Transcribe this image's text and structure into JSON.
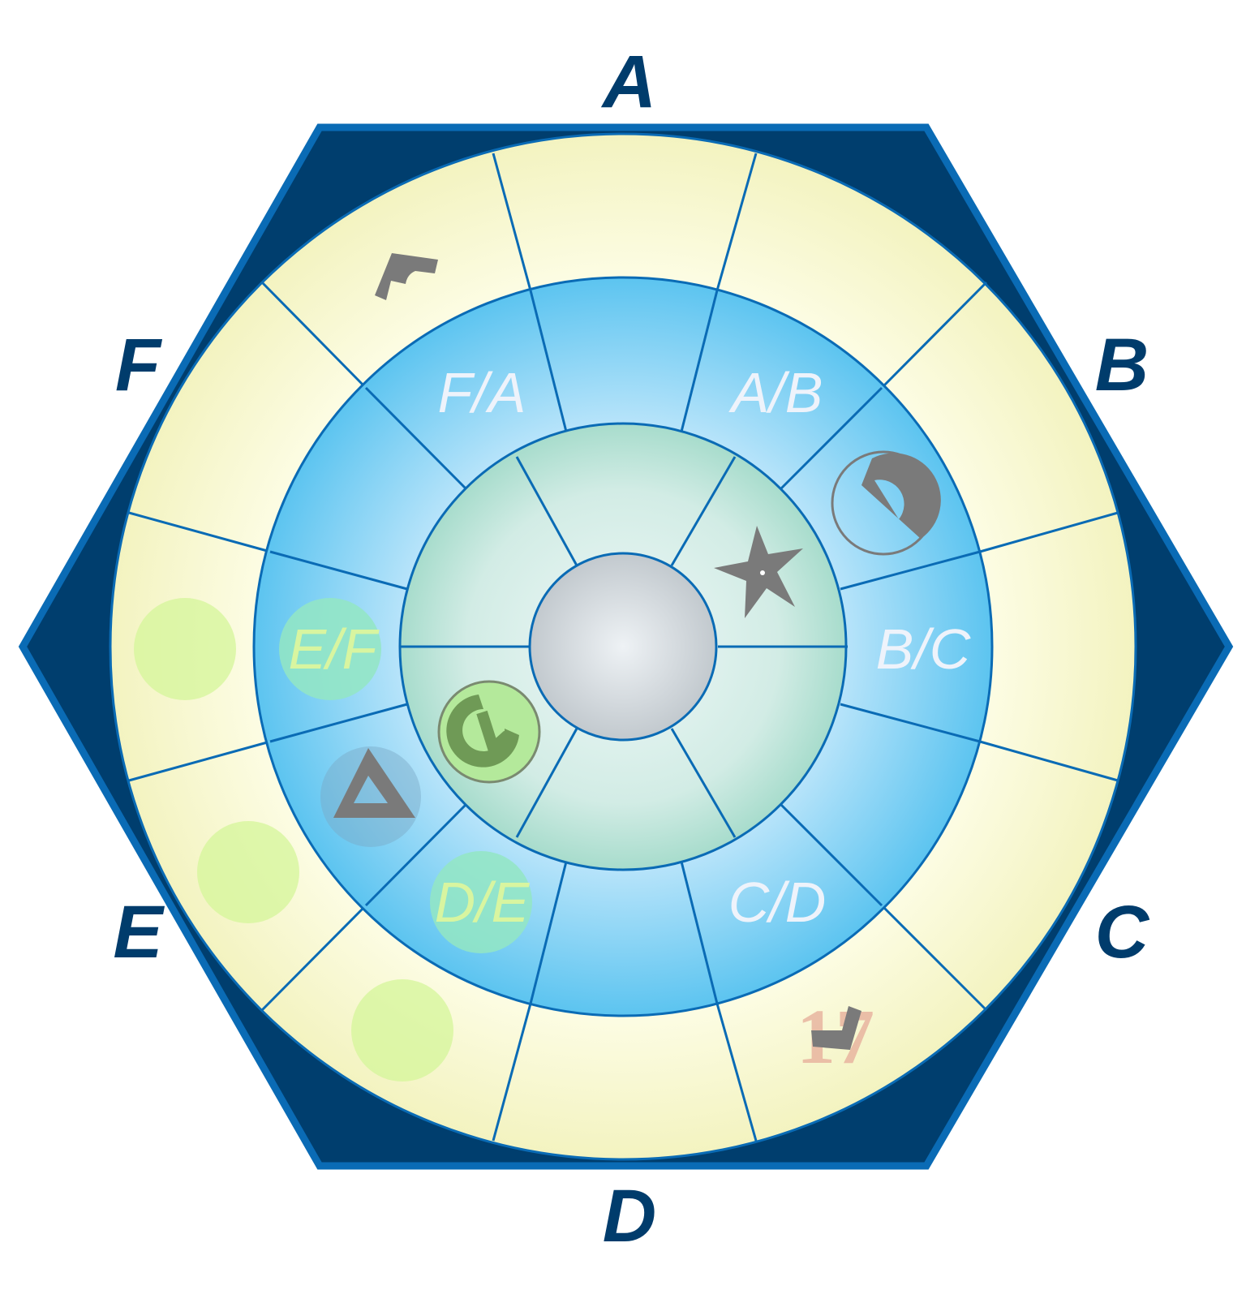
{
  "board": {
    "side_labels": {
      "A": "A",
      "B": "B",
      "C": "C",
      "D": "D",
      "E": "E",
      "F": "F"
    },
    "zone_labels": {
      "fa": "F/A",
      "ab": "A/B",
      "bc": "B/C",
      "cd": "C/D",
      "de": "D/E",
      "ef": "E/F"
    },
    "corner_badge_text": "17",
    "rings": [
      "outer",
      "middle",
      "inner",
      "center"
    ],
    "markers": [
      {
        "name": "outer-ring-marker-icon",
        "zone": "F/A",
        "ring": "outer"
      },
      {
        "name": "half-circle-marker-icon",
        "zone": "A/B",
        "ring": "middle"
      },
      {
        "name": "star-marker-icon",
        "zone": "A/B",
        "ring": "inner"
      },
      {
        "name": "hook-marker-icon",
        "zone": "D/E",
        "ring": "inner"
      },
      {
        "name": "triangle-marker-icon",
        "zone": "D/E",
        "ring": "middle"
      },
      {
        "name": "check-marker-icon",
        "zone": "C/D",
        "ring": "outer"
      }
    ],
    "ghost_tokens": [
      {
        "name": "ghost-token-ef-outer",
        "zone": "E/F",
        "ring": "outer"
      },
      {
        "name": "ghost-token-ef-middle",
        "zone": "E/F",
        "ring": "middle"
      },
      {
        "name": "ghost-token-de-outer-1",
        "zone": "D/E",
        "ring": "outer"
      },
      {
        "name": "ghost-token-de-outer-2",
        "zone": "D/E",
        "ring": "outer"
      },
      {
        "name": "ghost-token-de-middle",
        "zone": "D/E",
        "ring": "middle"
      }
    ],
    "colors": {
      "hex_fill": "#003e6e",
      "hex_border": "#0a6bb5",
      "outer_ring": "#fbfbd8",
      "middle_ring": "#a9dcf5",
      "inner_ring": "#cdeee6",
      "center": "#d7dde2",
      "marker": "#7a7a7a",
      "ghost_token": "#d4f59a"
    }
  }
}
